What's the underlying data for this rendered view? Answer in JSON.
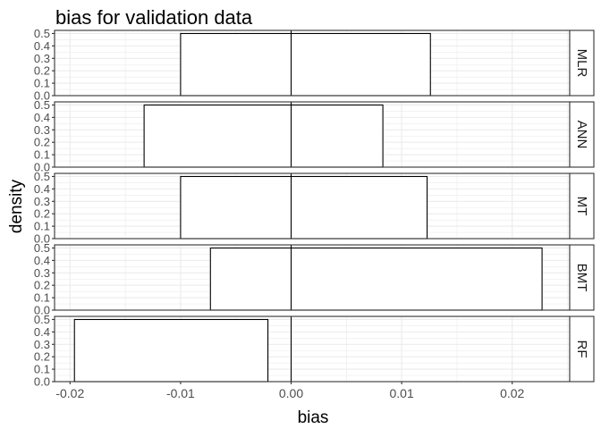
{
  "chart_data": {
    "type": "faceted-histogram",
    "title": "bias for validation data",
    "xlabel": "bias",
    "ylabel": "density",
    "xlim": [
      -0.0214,
      0.0252
    ],
    "ylim": [
      0,
      0.525
    ],
    "x_ticks": [
      -0.02,
      -0.01,
      0.0,
      0.01,
      0.02
    ],
    "x_tick_labels": [
      "-0.02",
      "-0.01",
      "0.00",
      "0.01",
      "0.02"
    ],
    "y_ticks": [
      0.0,
      0.1,
      0.2,
      0.3,
      0.4,
      0.5
    ],
    "y_tick_labels": [
      "0.0",
      "0.1",
      "0.2",
      "0.3",
      "0.4",
      "0.5"
    ],
    "grid": true,
    "vline_x": 0,
    "colors": {
      "bar_fill": "#ffffff",
      "bar_stroke": "#000000",
      "grid": "#ebebeb",
      "strip": "#ffffff",
      "frame": "#333333"
    },
    "facets": [
      {
        "label": "MLR",
        "bar": {
          "xmin": -0.01,
          "xmax": 0.0126,
          "density": 0.5
        }
      },
      {
        "label": "ANN",
        "bar": {
          "xmin": -0.0133,
          "xmax": 0.0083,
          "density": 0.5
        }
      },
      {
        "label": "MT",
        "bar": {
          "xmin": -0.01,
          "xmax": 0.0123,
          "density": 0.5
        }
      },
      {
        "label": "BMT",
        "bar": {
          "xmin": -0.0073,
          "xmax": 0.0227,
          "density": 0.5
        }
      },
      {
        "label": "RF",
        "bar": {
          "xmin": -0.0196,
          "xmax": -0.0021,
          "density": 0.5
        }
      }
    ]
  }
}
